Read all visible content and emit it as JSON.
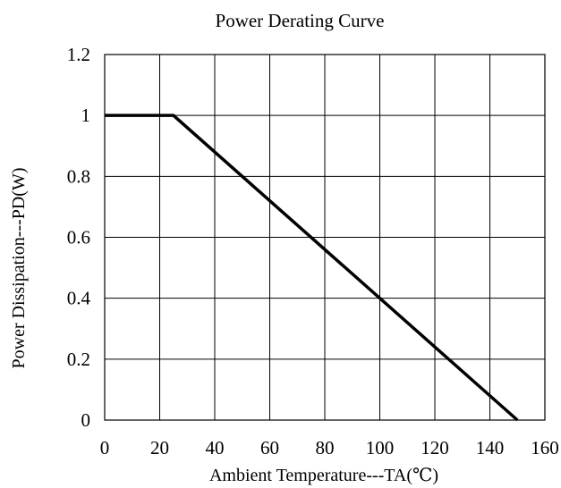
{
  "chart_data": {
    "type": "line",
    "title": "Power Derating Curve",
    "xlabel": "Ambient Temperature---TA(℃)",
    "ylabel": "Power Dissipation---PD(W)",
    "xlim": [
      0,
      160
    ],
    "ylim": [
      0,
      1.2
    ],
    "x_ticks": [
      0,
      20,
      40,
      60,
      80,
      100,
      120,
      140,
      160
    ],
    "x_tick_labels": [
      "0",
      "20",
      "40",
      "60",
      "80",
      "100",
      "120",
      "140",
      "160"
    ],
    "y_ticks": [
      0,
      0.2,
      0.4,
      0.6,
      0.8,
      1,
      1.2
    ],
    "y_tick_labels": [
      "0",
      "0.2",
      "0.4",
      "0.6",
      "0.8",
      "1",
      "1.2"
    ],
    "grid": true,
    "legend": "none",
    "series": [
      {
        "x": [
          0,
          25,
          150
        ],
        "y": [
          1,
          1,
          0
        ],
        "color": "#000000"
      }
    ]
  }
}
